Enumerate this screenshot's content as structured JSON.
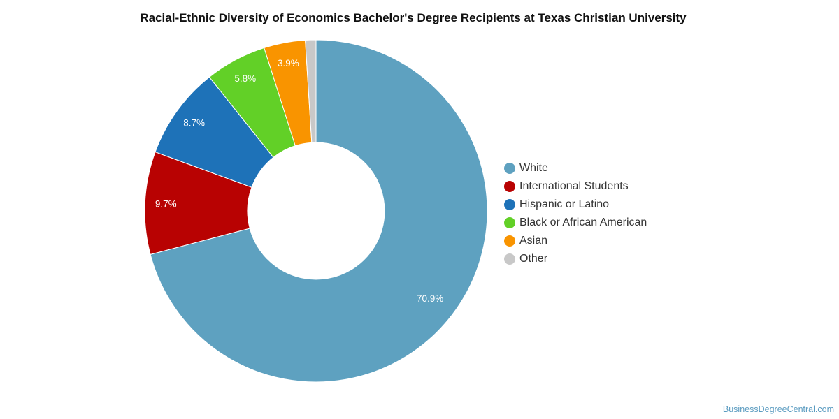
{
  "chart_data": {
    "type": "pie",
    "title": "Racial-Ethnic Diversity of Economics Bachelor's Degree Recipients at Texas Christian University",
    "donut": true,
    "legend_position": "right",
    "slices": [
      {
        "label": "White",
        "value": 70.9,
        "display": "70.9%",
        "color": "#5ea1c0"
      },
      {
        "label": "International Students",
        "value": 9.7,
        "display": "9.7%",
        "color": "#b80202"
      },
      {
        "label": "Hispanic or Latino",
        "value": 8.7,
        "display": "8.7%",
        "color": "#1e72b8"
      },
      {
        "label": "Black or African American",
        "value": 5.8,
        "display": "5.8%",
        "color": "#62d027"
      },
      {
        "label": "Asian",
        "value": 3.9,
        "display": "3.9%",
        "color": "#f99400"
      },
      {
        "label": "Other",
        "value": 1.0,
        "display": "",
        "color": "#c8c8c8"
      }
    ]
  },
  "source": "BusinessDegreeCentral.com"
}
